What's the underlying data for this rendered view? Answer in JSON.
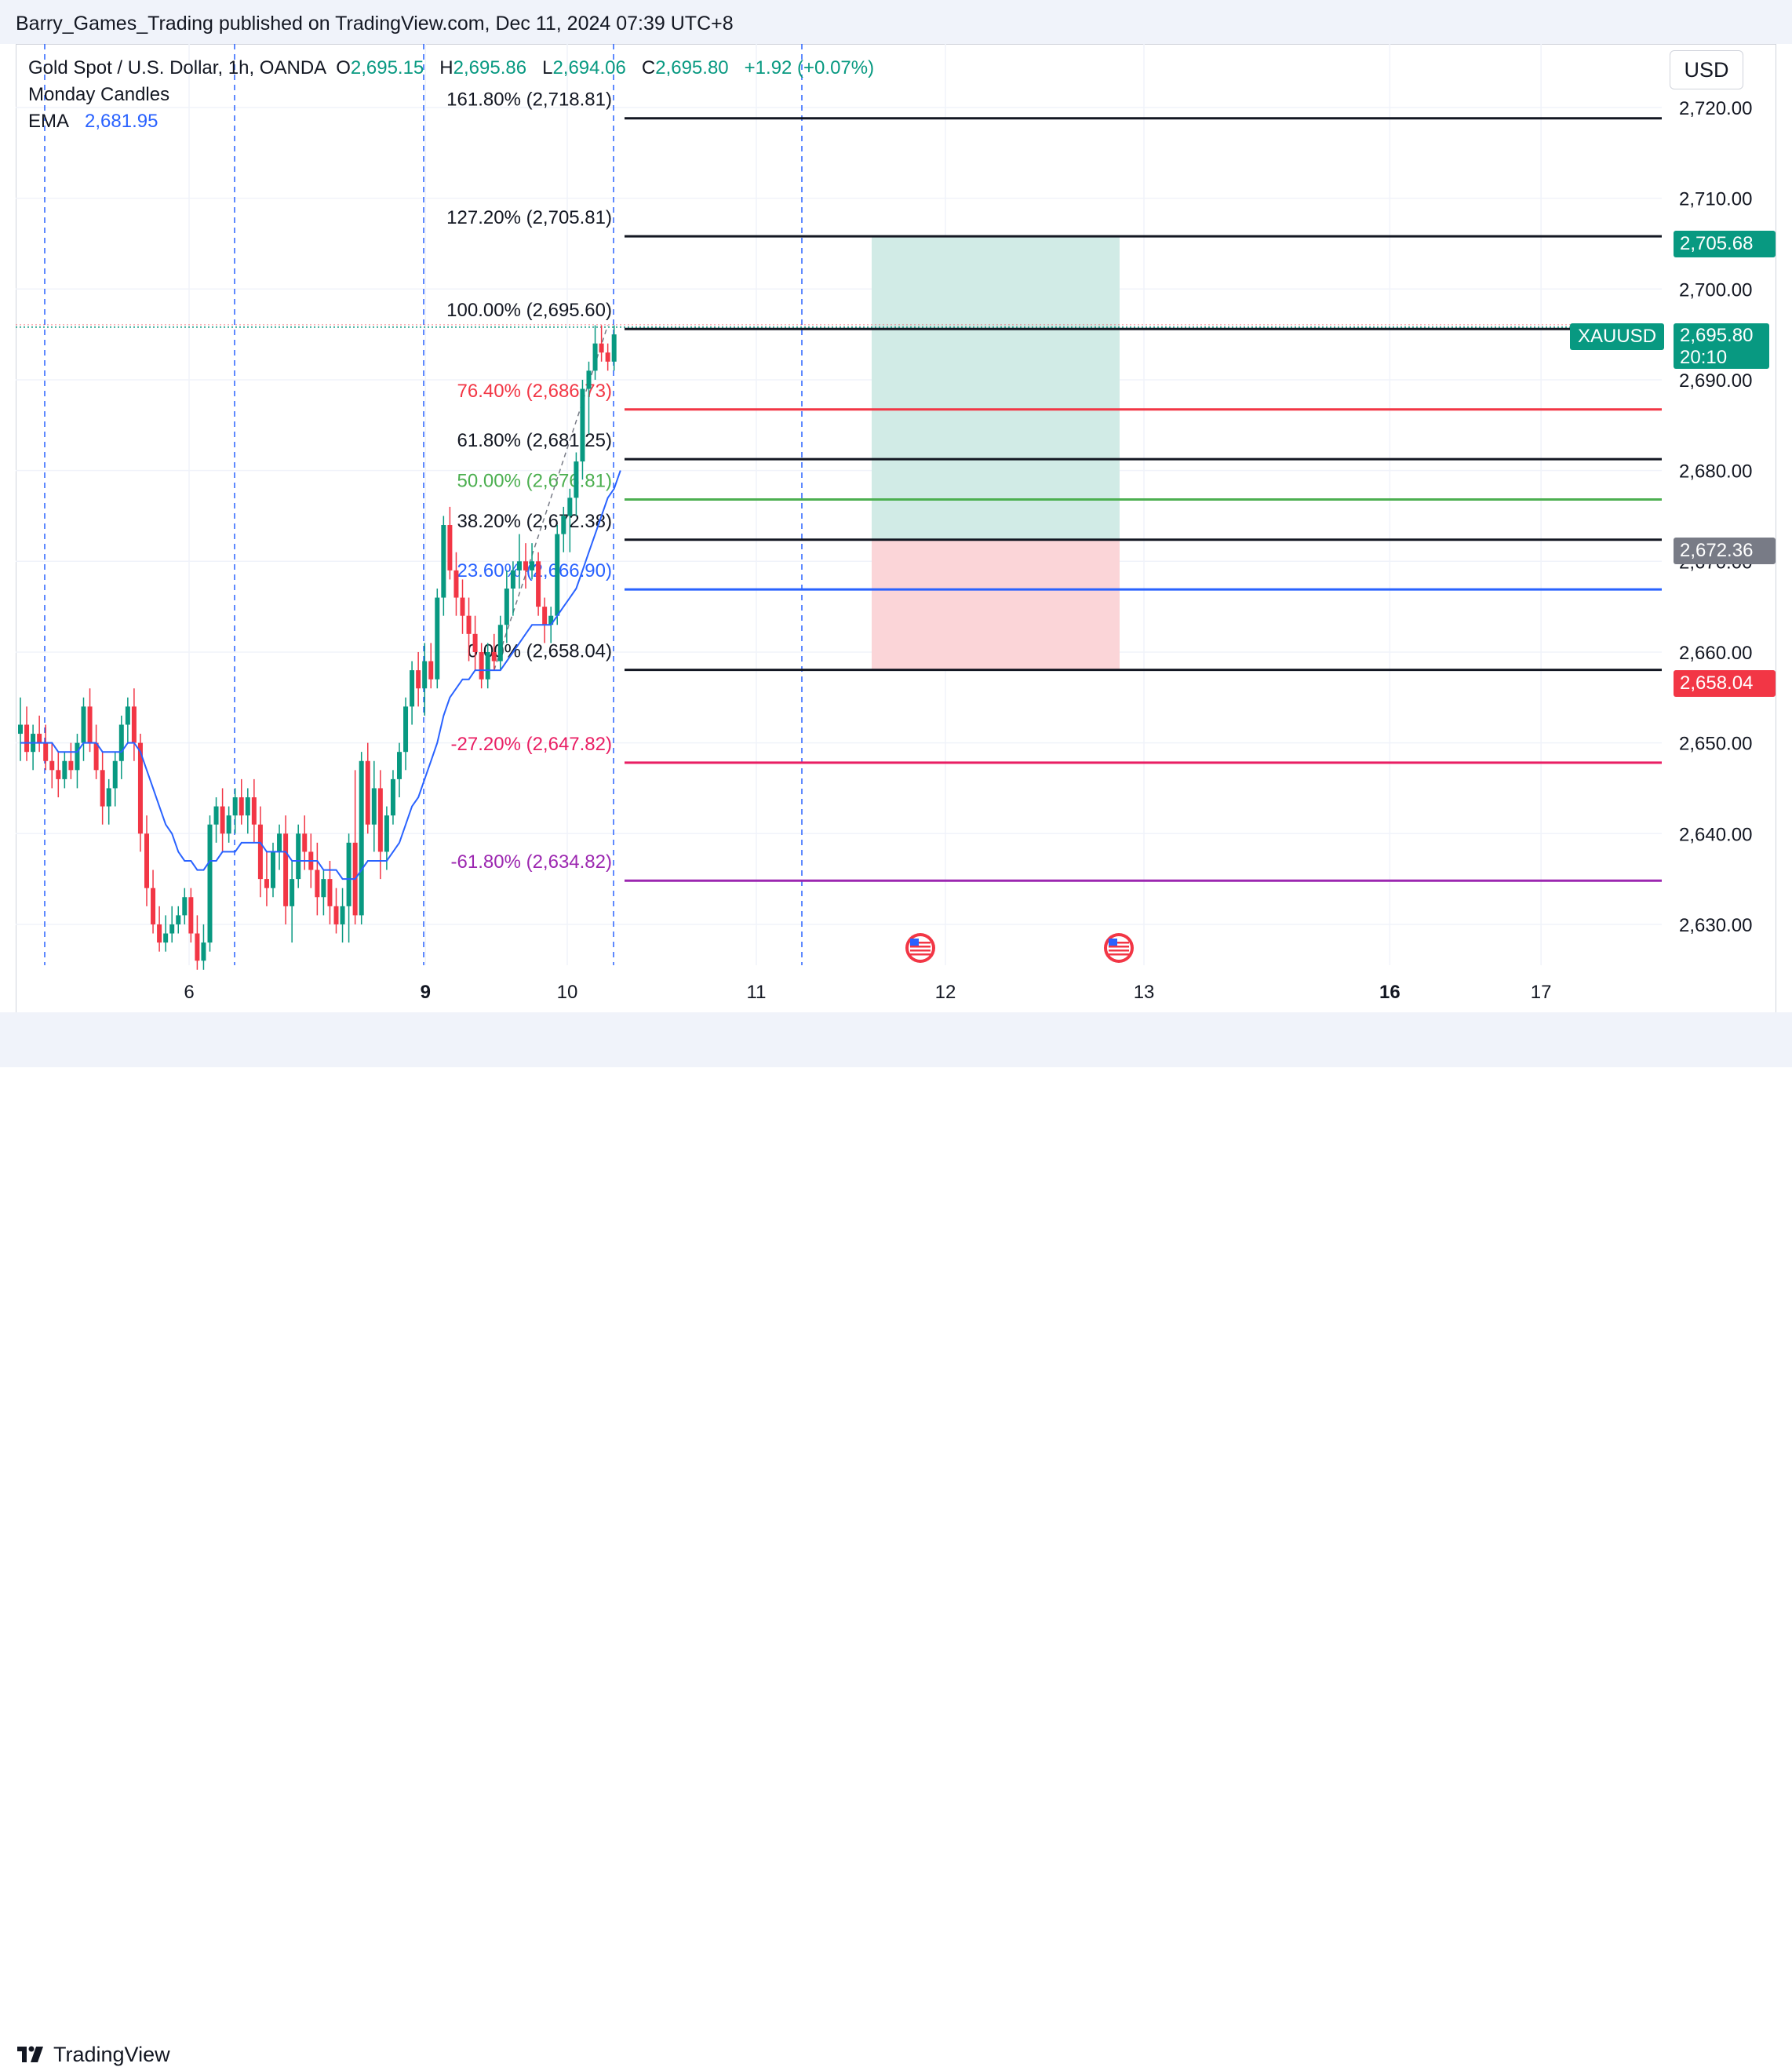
{
  "header": {
    "published_line": "Barry_Games_Trading published on TradingView.com, Dec 11, 2024 07:39 UTC+8"
  },
  "legend": {
    "symbol": "Gold Spot / U.S. Dollar, 1h, OANDA",
    "o_key": "O",
    "o_val": "2,695.15",
    "h_key": "H",
    "h_val": "2,695.86",
    "l_key": "L",
    "l_val": "2,694.06",
    "c_key": "C",
    "c_val": "2,695.80",
    "change": "+1.92 (+0.07%)",
    "indicator_1": "Monday Candles",
    "ema_label": "EMA",
    "ema_value": "2,681.95"
  },
  "currency_button": "USD",
  "footer": {
    "brand": "TradingView"
  },
  "tags": {
    "tp_price": "2,705.68",
    "symbol": "XAUUSD",
    "current_price": "2,695.80",
    "countdown": "20:10",
    "entry_price": "2,672.36",
    "sl_price": "2,658.04"
  },
  "colors": {
    "up": "#089981",
    "down": "#f23645",
    "ema": "#2962ff",
    "tp_zone": "#d1ebe6",
    "sl_zone": "#fbd5d8",
    "entry_tag": "#787b86",
    "monday_lines": "#2962ff"
  },
  "chart_data": {
    "type": "candlestick",
    "ylim": [
      2625.5,
      2727
    ],
    "y_ticks": [
      2630,
      2640,
      2650,
      2660,
      2670,
      2680,
      2690,
      2700,
      2710,
      2720
    ],
    "y_tick_labels": [
      "2,630.00",
      "2,640.00",
      "2,650.00",
      "2,660.00",
      "2,670.00",
      "2,680.00",
      "2,690.00",
      "2,700.00",
      "2,710.00",
      "2,720.00"
    ],
    "x_ticks": [
      {
        "label": "6",
        "bold": false,
        "day_offset": 0
      },
      {
        "label": "9",
        "bold": true,
        "day_offset": 1.25
      },
      {
        "label": "10",
        "bold": false,
        "day_offset": 2
      },
      {
        "label": "11",
        "bold": false,
        "day_offset": 3
      },
      {
        "label": "12",
        "bold": false,
        "day_offset": 4
      },
      {
        "label": "13",
        "bold": false,
        "day_offset": 5.05
      },
      {
        "label": "16",
        "bold": true,
        "day_offset": 6.35
      },
      {
        "label": "17",
        "bold": false,
        "day_offset": 7.15
      }
    ],
    "fib_levels": [
      {
        "label": "161.80% (2,718.81)",
        "price": 2718.81,
        "color": "#131722"
      },
      {
        "label": "127.20% (2,705.81)",
        "price": 2705.81,
        "color": "#131722"
      },
      {
        "label": "100.00% (2,695.60)",
        "price": 2695.6,
        "color": "#131722"
      },
      {
        "label": "76.40% (2,686.73)",
        "price": 2686.73,
        "color": "#f23645"
      },
      {
        "label": "61.80% (2,681.25)",
        "price": 2681.25,
        "color": "#131722"
      },
      {
        "label": "50.00% (2,676.81)",
        "price": 2676.81,
        "color": "#4caf50"
      },
      {
        "label": "38.20% (2,672.38)",
        "price": 2672.38,
        "color": "#131722"
      },
      {
        "label": "23.60% (2,666.90)",
        "price": 2666.9,
        "color": "#2962ff"
      },
      {
        "label": "0.00% (2,658.04)",
        "price": 2658.04,
        "color": "#131722"
      },
      {
        "label": "-27.20% (2,647.82)",
        "price": 2647.82,
        "color": "#e91e63"
      },
      {
        "label": "-61.80% (2,634.82)",
        "price": 2634.82,
        "color": "#9c27b0"
      }
    ],
    "position": {
      "take_profit": 2705.68,
      "entry": 2672.36,
      "stop_loss": 2658.04
    },
    "current_price": 2695.8,
    "candles": [
      [
        2651,
        2655,
        2648,
        2652
      ],
      [
        2652,
        2654,
        2648,
        2649
      ],
      [
        2649,
        2652,
        2647,
        2651
      ],
      [
        2651,
        2653,
        2649,
        2650
      ],
      [
        2650,
        2652,
        2647,
        2648
      ],
      [
        2648,
        2650,
        2645,
        2647
      ],
      [
        2647,
        2649,
        2644,
        2646
      ],
      [
        2646,
        2649,
        2645,
        2648
      ],
      [
        2648,
        2650,
        2646,
        2647
      ],
      [
        2647,
        2651,
        2645,
        2650
      ],
      [
        2650,
        2655,
        2648,
        2654
      ],
      [
        2654,
        2656,
        2649,
        2650
      ],
      [
        2650,
        2652,
        2646,
        2647
      ],
      [
        2647,
        2649,
        2641,
        2643
      ],
      [
        2643,
        2646,
        2641,
        2645
      ],
      [
        2645,
        2649,
        2643,
        2648
      ],
      [
        2648,
        2653,
        2646,
        2652
      ],
      [
        2652,
        2655,
        2650,
        2654
      ],
      [
        2654,
        2656,
        2648,
        2650
      ],
      [
        2650,
        2651,
        2638,
        2640
      ],
      [
        2640,
        2642,
        2632,
        2634
      ],
      [
        2634,
        2636,
        2629,
        2630
      ],
      [
        2630,
        2632,
        2627,
        2628
      ],
      [
        2628,
        2631,
        2627,
        2629
      ],
      [
        2629,
        2632,
        2628,
        2630
      ],
      [
        2630,
        2632,
        2629,
        2631
      ],
      [
        2631,
        2634,
        2630,
        2633
      ],
      [
        2633,
        2634,
        2628,
        2629
      ],
      [
        2629,
        2631,
        2625,
        2626
      ],
      [
        2626,
        2630,
        2625,
        2628
      ],
      [
        2628,
        2642,
        2627,
        2641
      ],
      [
        2641,
        2644,
        2639,
        2643
      ],
      [
        2643,
        2645,
        2638,
        2640
      ],
      [
        2640,
        2643,
        2639,
        2642
      ],
      [
        2642,
        2645,
        2640,
        2644
      ],
      [
        2644,
        2646,
        2641,
        2642
      ],
      [
        2642,
        2645,
        2640,
        2644
      ],
      [
        2644,
        2646,
        2639,
        2641
      ],
      [
        2641,
        2643,
        2633,
        2635
      ],
      [
        2635,
        2638,
        2632,
        2634
      ],
      [
        2634,
        2639,
        2633,
        2638
      ],
      [
        2638,
        2641,
        2636,
        2640
      ],
      [
        2640,
        2642,
        2630,
        2632
      ],
      [
        2632,
        2637,
        2628,
        2635
      ],
      [
        2635,
        2641,
        2634,
        2640
      ],
      [
        2640,
        2642,
        2636,
        2638
      ],
      [
        2638,
        2640,
        2634,
        2636
      ],
      [
        2636,
        2639,
        2631,
        2633
      ],
      [
        2633,
        2636,
        2631,
        2635
      ],
      [
        2635,
        2637,
        2630,
        2632
      ],
      [
        2632,
        2634,
        2629,
        2630
      ],
      [
        2630,
        2634,
        2628,
        2632
      ],
      [
        2632,
        2640,
        2628,
        2639
      ],
      [
        2639,
        2647,
        2630,
        2631
      ],
      [
        2631,
        2649,
        2630,
        2648
      ],
      [
        2648,
        2650,
        2640,
        2641
      ],
      [
        2641,
        2648,
        2638,
        2645
      ],
      [
        2645,
        2647,
        2635,
        2638
      ],
      [
        2638,
        2643,
        2636,
        2642
      ],
      [
        2642,
        2647,
        2641,
        2646
      ],
      [
        2646,
        2650,
        2644,
        2649
      ],
      [
        2649,
        2655,
        2647,
        2654
      ],
      [
        2654,
        2659,
        2652,
        2658
      ],
      [
        2658,
        2660,
        2654,
        2656
      ],
      [
        2656,
        2661,
        2653,
        2659
      ],
      [
        2659,
        2661,
        2656,
        2657
      ],
      [
        2657,
        2667,
        2656,
        2666
      ],
      [
        2666,
        2675,
        2664,
        2674
      ],
      [
        2674,
        2676,
        2668,
        2669
      ],
      [
        2669,
        2671,
        2664,
        2666
      ],
      [
        2666,
        2668,
        2662,
        2664
      ],
      [
        2664,
        2666,
        2659,
        2662
      ],
      [
        2662,
        2664,
        2658,
        2660
      ],
      [
        2660,
        2661,
        2656,
        2657
      ],
      [
        2657,
        2661,
        2656,
        2660
      ],
      [
        2660,
        2662,
        2658,
        2659
      ],
      [
        2659,
        2664,
        2658,
        2663
      ],
      [
        2663,
        2669,
        2661,
        2667
      ],
      [
        2667,
        2670,
        2664,
        2669
      ],
      [
        2669,
        2673,
        2667,
        2670
      ],
      [
        2670,
        2672,
        2667,
        2669
      ],
      [
        2669,
        2672,
        2668,
        2670
      ],
      [
        2670,
        2671,
        2664,
        2665
      ],
      [
        2665,
        2666,
        2661,
        2663
      ],
      [
        2663,
        2665,
        2661,
        2664
      ],
      [
        2664,
        2674,
        2663,
        2673
      ],
      [
        2673,
        2676,
        2671,
        2675
      ],
      [
        2675,
        2678,
        2671,
        2677
      ],
      [
        2677,
        2682,
        2675,
        2681
      ],
      [
        2681,
        2690,
        2679,
        2689
      ],
      [
        2689,
        2692,
        2684,
        2691
      ],
      [
        2691,
        2696,
        2690,
        2694
      ],
      [
        2694,
        2696,
        2692,
        2693
      ],
      [
        2693,
        2694,
        2691,
        2692
      ],
      [
        2692,
        2696,
        2691,
        2695
      ]
    ],
    "ema": [
      2650,
      2650,
      2650,
      2650,
      2650,
      2650,
      2649,
      2649,
      2649,
      2649,
      2650,
      2650,
      2650,
      2649,
      2649,
      2649,
      2649,
      2650,
      2650,
      2649,
      2647,
      2645,
      2643,
      2641,
      2640,
      2638,
      2637,
      2637,
      2636,
      2636,
      2637,
      2637,
      2638,
      2638,
      2638,
      2639,
      2639,
      2639,
      2639,
      2638,
      2638,
      2638,
      2638,
      2637,
      2637,
      2637,
      2637,
      2637,
      2636,
      2636,
      2636,
      2635,
      2635,
      2635,
      2636,
      2637,
      2637,
      2637,
      2637,
      2638,
      2639,
      2641,
      2643,
      2644,
      2646,
      2648,
      2650,
      2653,
      2655,
      2656,
      2657,
      2657,
      2658,
      2658,
      2658,
      2658,
      2658,
      2659,
      2660,
      2661,
      2662,
      2663,
      2663,
      2663,
      2663,
      2664,
      2665,
      2666,
      2667,
      2669,
      2671,
      2673,
      2675,
      2677,
      2678,
      2680
    ]
  }
}
